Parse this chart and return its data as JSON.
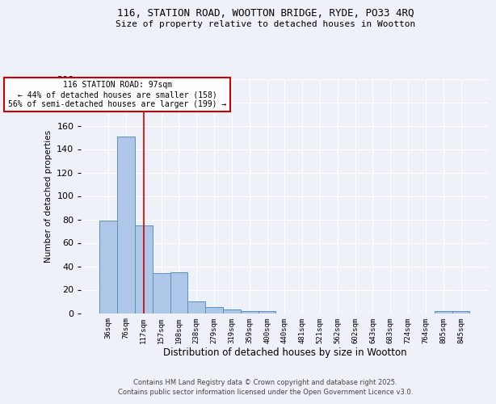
{
  "title_line1": "116, STATION ROAD, WOOTTON BRIDGE, RYDE, PO33 4RQ",
  "title_line2": "Size of property relative to detached houses in Wootton",
  "bar_values": [
    79,
    151,
    75,
    34,
    35,
    10,
    5,
    3,
    2,
    2,
    0,
    0,
    0,
    0,
    0,
    0,
    0,
    0,
    0,
    2,
    2
  ],
  "x_labels": [
    "36sqm",
    "76sqm",
    "117sqm",
    "157sqm",
    "198sqm",
    "238sqm",
    "279sqm",
    "319sqm",
    "359sqm",
    "400sqm",
    "440sqm",
    "481sqm",
    "521sqm",
    "562sqm",
    "602sqm",
    "643sqm",
    "683sqm",
    "724sqm",
    "764sqm",
    "805sqm",
    "845sqm"
  ],
  "xlabel": "Distribution of detached houses by size in Wootton",
  "ylabel": "Number of detached properties",
  "bar_color": "#aec6e8",
  "bar_edge_color": "#5a8fc2",
  "red_line_x": 2,
  "annotation_title": "116 STATION ROAD: 97sqm",
  "annotation_line1": "← 44% of detached houses are smaller (158)",
  "annotation_line2": "56% of semi-detached houses are larger (199) →",
  "annotation_box_color": "#ffffff",
  "annotation_box_edge": "#cc0000",
  "red_line_color": "#cc0000",
  "ylim": [
    0,
    200
  ],
  "yticks": [
    0,
    20,
    40,
    60,
    80,
    100,
    120,
    140,
    160,
    180,
    200
  ],
  "footer_line1": "Contains HM Land Registry data © Crown copyright and database right 2025.",
  "footer_line2": "Contains public sector information licensed under the Open Government Licence v3.0.",
  "bg_color": "#eef2f8",
  "grid_color": "#ffffff"
}
